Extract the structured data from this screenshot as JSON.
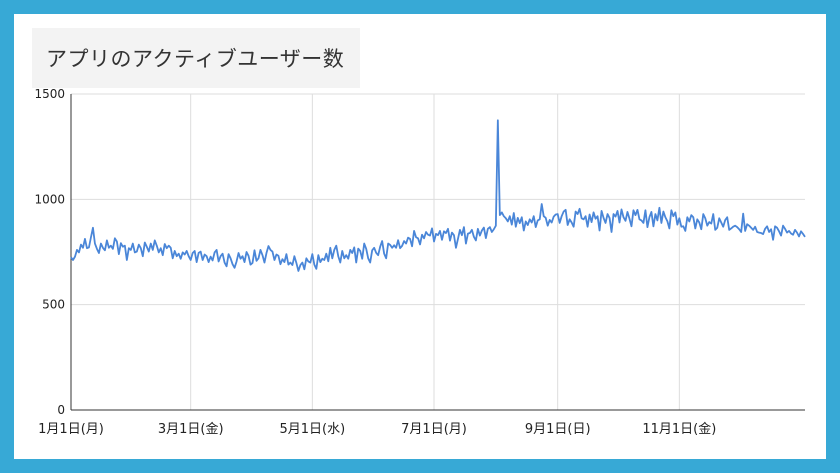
{
  "chart_data": {
    "type": "line",
    "title": "アプリのアクティブユーザー数",
    "xlabel": "",
    "ylabel": "",
    "ylim": [
      0,
      1500
    ],
    "y_ticks": [
      "1500",
      "1000",
      "500",
      "0"
    ],
    "x_ticks": [
      "1月1日(月)",
      "3月1日(金)",
      "5月1日(水)",
      "7月1日(月)",
      "9月1日(日)",
      "11月1日(金)"
    ],
    "x_tick_days": [
      0,
      60,
      121,
      182,
      244,
      305
    ],
    "grid": true,
    "legend": "none",
    "line_color": "#4a86d8",
    "series": [
      {
        "values": [
          725,
          712,
          728,
          760,
          748,
          785,
          770,
          812,
          768,
          772,
          820,
          865,
          790,
          765,
          745,
          790,
          770,
          758,
          805,
          770,
          780,
          765,
          815,
          800,
          740,
          792,
          775,
          780,
          712,
          768,
          760,
          790,
          748,
          752,
          785,
          768,
          730,
          795,
          775,
          752,
          790,
          760,
          805,
          780,
          748,
          768,
          735,
          788,
          768,
          780,
          770,
          720,
          755,
          730,
          742,
          718,
          748,
          738,
          755,
          730,
          712,
          745,
          755,
          702,
          746,
          752,
          712,
          738,
          730,
          702,
          728,
          710,
          748,
          760,
          705,
          730,
          742,
          700,
          682,
          740,
          720,
          692,
          675,
          705,
          745,
          718,
          730,
          702,
          750,
          732,
          690,
          698,
          758,
          708,
          720,
          760,
          735,
          700,
          745,
          778,
          760,
          752,
          712,
          738,
          732,
          692,
          716,
          702,
          740,
          690,
          700,
          688,
          730,
          698,
          660,
          688,
          700,
          668,
          720,
          705,
          700,
          740,
          690,
          670,
          735,
          702,
          718,
          712,
          742,
          706,
          770,
          720,
          760,
          780,
          730,
          700,
          755,
          720,
          735,
          718,
          760,
          745,
          772,
          700,
          766,
          755,
          718,
          790,
          765,
          720,
          700,
          758,
          770,
          746,
          735,
          775,
          802,
          742,
          720,
          790,
          784,
          770,
          782,
          770,
          806,
          768,
          779,
          802,
          790,
          818,
          812,
          777,
          850,
          820,
          815,
          786,
          832,
          815,
          845,
          832,
          828,
          862,
          800,
          836,
          830,
          850,
          808,
          848,
          840,
          860,
          804,
          842,
          830,
          770,
          812,
          855,
          830,
          868,
          790,
          837,
          840,
          855,
          822,
          805,
          860,
          828,
          852,
          866,
          816,
          860,
          868,
          845,
          858,
          875,
          1375,
          925,
          938,
          920,
          910,
          895,
          920,
          880,
          935,
          870,
          912,
          887,
          915,
          852,
          895,
          878,
          905,
          890,
          920,
          868,
          900,
          905,
          978,
          920,
          912,
          875,
          902,
          890,
          918,
          928,
          930,
          888,
          920,
          942,
          950,
          878,
          905,
          890,
          870,
          942,
          930,
          955,
          910,
          905,
          920,
          870,
          928,
          892,
          938,
          908,
          920,
          852,
          945,
          912,
          888,
          930,
          912,
          845,
          930,
          918,
          945,
          890,
          952,
          915,
          898,
          940,
          908,
          872,
          948,
          925,
          950,
          905,
          900,
          888,
          948,
          868,
          915,
          940,
          872,
          930,
          900,
          960,
          888,
          942,
          915,
          896,
          862,
          948,
          920,
          938,
          880,
          910,
          870,
          872,
          850,
          915,
          895,
          925,
          915,
          862,
          905,
          890,
          858,
          930,
          910,
          875,
          892,
          885,
          930,
          855,
          865,
          910,
          890,
          870,
          902,
          915,
          855,
          862,
          870,
          875,
          868,
          858,
          845,
          932,
          850,
          882,
          875,
          865,
          855,
          870,
          845,
          842,
          840,
          835,
          860,
          872,
          845,
          858,
          808,
          872,
          865,
          848,
          828,
          875,
          860,
          842,
          850,
          838,
          832,
          855,
          842,
          824,
          848,
          836,
          822
        ]
      }
    ]
  }
}
